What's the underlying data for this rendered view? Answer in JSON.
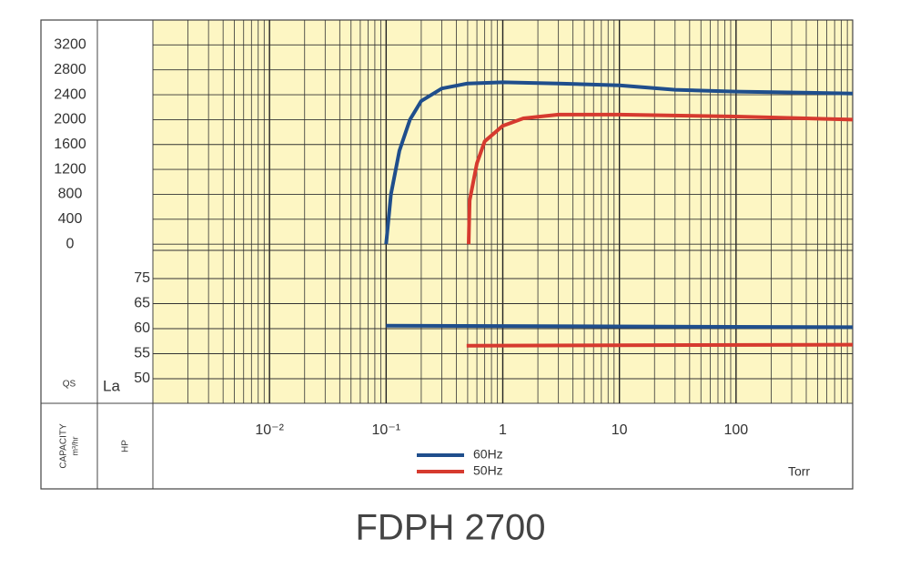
{
  "chart_data": {
    "type": "line",
    "title": "FDPH 2700",
    "xlabel": "Torr",
    "ylabel": {
      "symbol": "QS",
      "text": "CAPACITY",
      "unit": "m³/hr"
    },
    "y2label": {
      "symbol": "La",
      "text": "HP"
    },
    "xscale": "log",
    "xlim": [
      0.001,
      1000
    ],
    "xticks": [
      {
        "value": 0.01,
        "label": "10⁻²"
      },
      {
        "value": 0.1,
        "label": "10⁻¹"
      },
      1,
      10,
      100
    ],
    "ylim": [
      -100,
      3600
    ],
    "yticks": [
      0,
      400,
      800,
      1200,
      1600,
      2000,
      2400,
      2800,
      3200
    ],
    "y2lim": [
      45,
      80
    ],
    "y2ticks": [
      50,
      55,
      60,
      65,
      75
    ],
    "grid": true,
    "background": "#fdf6c3",
    "series": [
      {
        "name": "60Hz",
        "color": "#1f4e8c",
        "x": [
          0.1,
          0.11,
          0.13,
          0.16,
          0.2,
          0.3,
          0.5,
          1,
          3,
          10,
          30,
          100,
          1000
        ],
        "values": [
          0,
          800,
          1500,
          2000,
          2300,
          2500,
          2580,
          2600,
          2580,
          2550,
          2480,
          2450,
          2420
        ]
      },
      {
        "name": "50Hz",
        "color": "#d63a2f",
        "x": [
          0.51,
          0.52,
          0.6,
          0.7,
          1,
          1.5,
          3,
          10,
          100,
          1000
        ],
        "values": [
          0,
          700,
          1300,
          1650,
          1900,
          2020,
          2080,
          2080,
          2050,
          2000
        ]
      },
      {
        "color": "#1f4e8c",
        "axis": "y2",
        "x": [
          0.1,
          1000
        ],
        "values": [
          60.6,
          60.3
        ]
      },
      {
        "color": "#d63a2f",
        "axis": "y2",
        "x": [
          0.49,
          1000
        ],
        "values": [
          56.6,
          56.8
        ]
      }
    ]
  }
}
